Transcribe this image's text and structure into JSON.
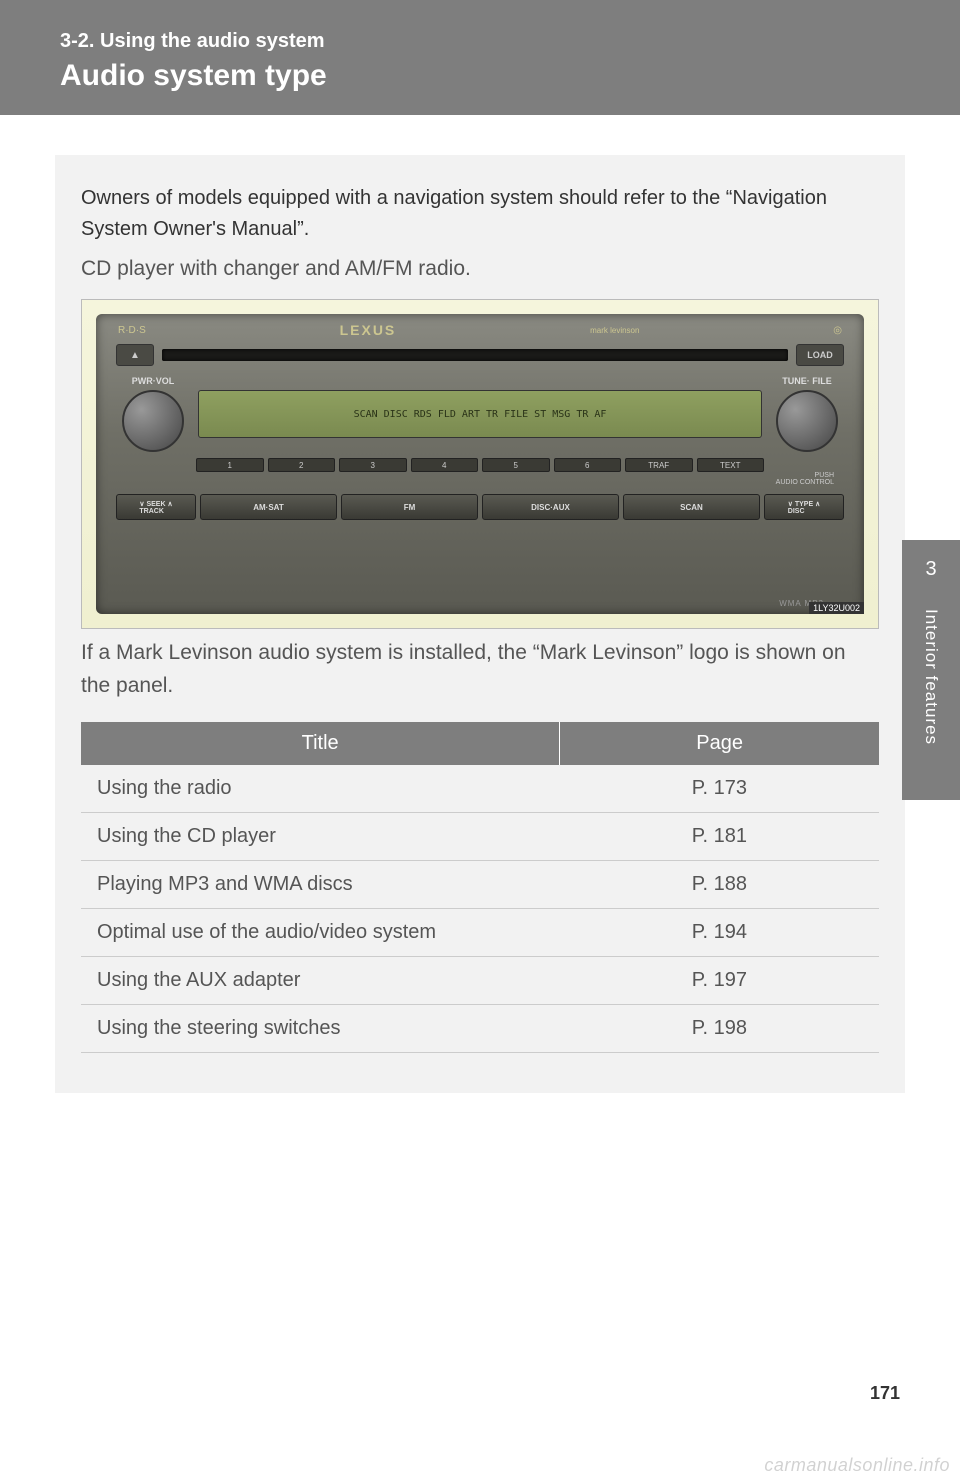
{
  "header": {
    "section": "3-2. Using the audio system",
    "title": "Audio system type"
  },
  "intro": {
    "bold": "Owners of models equipped with a navigation system should refer to the “Navigation System Owner's Manual”.",
    "regular": "CD player with changer and AM/FM radio."
  },
  "radio": {
    "rds": "R·D·S",
    "brand": "LEXUS",
    "sub_brand": "mark levinson",
    "cd_logo": "disc",
    "eject": "▲",
    "slot_label": "6 DISC CD CHANGER",
    "load": "LOAD",
    "pwr": "PWR·VOL",
    "tune": "TUNE· FILE",
    "display": "SCAN DISC RDS FLD ART TR FILE ST MSG  TR AF",
    "presets": [
      "1",
      "2",
      "3",
      "4",
      "5",
      "6",
      "TRAF",
      "TEXT"
    ],
    "audio_control": "PUSH\nAUDIO CONTROL",
    "seek": "∨  SEEK  ∧\n   TRACK",
    "buttons": [
      "AM·SAT",
      "FM",
      "DISC·AUX",
      "SCAN"
    ],
    "type": "∨ TYPE ∧\n   DISC",
    "wma": "WMA  MP3",
    "ref": "1LY32U002"
  },
  "caption": "If a Mark Levinson audio system is installed, the “Mark Levinson” logo is shown on the panel.",
  "table": {
    "headers": [
      "Title",
      "Page"
    ],
    "rows": [
      {
        "title": "Using the radio",
        "page": "P. 173"
      },
      {
        "title": "Using the CD player",
        "page": "P. 181"
      },
      {
        "title": "Playing MP3 and WMA discs",
        "page": "P. 188"
      },
      {
        "title": "Optimal use of the audio/video system",
        "page": "P. 194"
      },
      {
        "title": "Using the AUX adapter",
        "page": "P. 197"
      },
      {
        "title": "Using the steering switches",
        "page": "P. 198"
      }
    ]
  },
  "side_tab": {
    "num": "3",
    "text": "Interior features"
  },
  "page_number": "171",
  "watermark": "carmanualsonline.info",
  "colors": {
    "header_bg": "#7e7e7e",
    "content_bg": "#f2f2f2",
    "text": "#333333",
    "text_light": "#555555"
  }
}
